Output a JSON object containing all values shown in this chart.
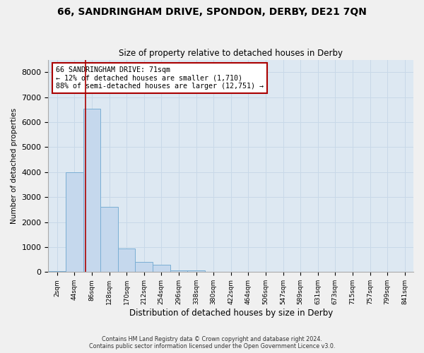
{
  "title_line1": "66, SANDRINGHAM DRIVE, SPONDON, DERBY, DE21 7QN",
  "title_line2": "Size of property relative to detached houses in Derby",
  "xlabel": "Distribution of detached houses by size in Derby",
  "ylabel": "Number of detached properties",
  "categories": [
    "2sqm",
    "44sqm",
    "86sqm",
    "128sqm",
    "170sqm",
    "212sqm",
    "254sqm",
    "296sqm",
    "338sqm",
    "380sqm",
    "422sqm",
    "464sqm",
    "506sqm",
    "547sqm",
    "589sqm",
    "631sqm",
    "673sqm",
    "715sqm",
    "757sqm",
    "799sqm",
    "841sqm"
  ],
  "values": [
    50,
    4000,
    6550,
    2600,
    950,
    400,
    300,
    80,
    60,
    0,
    0,
    0,
    0,
    0,
    0,
    0,
    0,
    0,
    0,
    0,
    0
  ],
  "bar_color": "#c5d8ed",
  "bar_edgecolor": "#7aaed4",
  "annotation_line1": "66 SANDRINGHAM DRIVE: 71sqm",
  "annotation_line2": "← 12% of detached houses are smaller (1,710)",
  "annotation_line3": "88% of semi-detached houses are larger (12,751) →",
  "annotation_box_facecolor": "#ffffff",
  "annotation_box_edgecolor": "#aa0000",
  "vline_color": "#aa0000",
  "ylim": [
    0,
    8500
  ],
  "yticks": [
    0,
    1000,
    2000,
    3000,
    4000,
    5000,
    6000,
    7000,
    8000
  ],
  "grid_color": "#c8d8e8",
  "bg_color": "#dde8f2",
  "fig_facecolor": "#f0f0f0",
  "footer_line1": "Contains HM Land Registry data © Crown copyright and database right 2024.",
  "footer_line2": "Contains public sector information licensed under the Open Government Licence v3.0."
}
